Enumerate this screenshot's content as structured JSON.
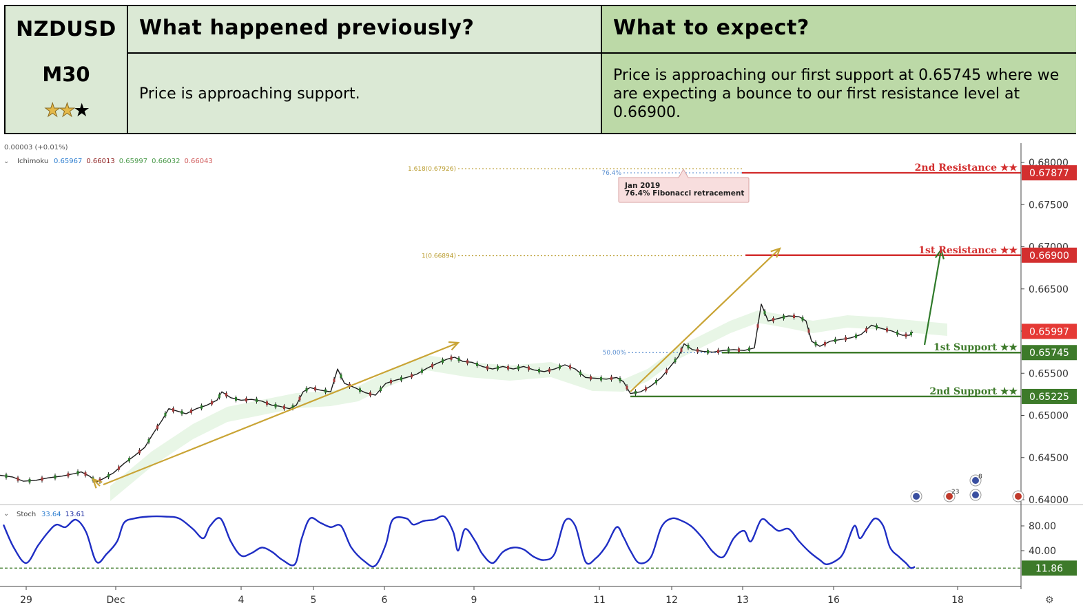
{
  "header": {
    "symbol": "NZDUSD",
    "timeframe": "M30",
    "stars_filled": 2,
    "stars_total": 3,
    "prev_title": "What happened previously?",
    "prev_text": "Price is approaching support.",
    "expect_title": "What to expect?",
    "expect_text": "Price is approaching our first support at 0.65745 where we are expecting a bounce to our first resistance level at 0.66900."
  },
  "chart_data": {
    "type": "line",
    "instrument": "NZDUSD",
    "timeframe": "M30",
    "top_readout": "0.00003 (+0.01%)",
    "indicator_label": "Ichimoku",
    "indicator_values": [
      "0.65967",
      "0.66013",
      "0.65997",
      "0.66032",
      "0.66043"
    ],
    "indicator_colors": [
      "#2f7fd0",
      "#8b1a1a",
      "#4a9a4a",
      "#4a9a4a",
      "#d05a5a"
    ],
    "price_axis": {
      "ylim": [
        0.64,
        0.68
      ],
      "ticks": [
        "0.64000",
        "0.64500",
        "0.65000",
        "0.65500",
        "0.66000",
        "0.66500",
        "0.67000",
        "0.67500",
        "0.68000"
      ]
    },
    "x_axis": {
      "ticks": [
        "29",
        "Dec",
        "4",
        "5",
        "6",
        "9",
        "11",
        "12",
        "13",
        "16",
        "18"
      ]
    },
    "current_price": "0.65997",
    "levels": [
      {
        "name": "2nd Resistance ★★",
        "value": 0.67877,
        "label": "0.67877",
        "color": "#d32f2f"
      },
      {
        "name": "1st Resistance ★★",
        "value": 0.669,
        "label": "0.66900",
        "color": "#d32f2f"
      },
      {
        "name": "1st Support ★★",
        "value": 0.65745,
        "label": "0.65745",
        "color": "#3d7a2a"
      },
      {
        "name": "2nd Support ★★",
        "value": 0.65225,
        "label": "0.65225",
        "color": "#3d7a2a"
      }
    ],
    "fib_levels": [
      {
        "label": "1.618(0.67926)",
        "value": 0.67926,
        "color": "#b89a2a"
      },
      {
        "label": "76.4%",
        "value": 0.67877,
        "color": "#5b8fd0"
      },
      {
        "label": "1(0.66894)",
        "value": 0.66894,
        "color": "#b89a2a"
      },
      {
        "label": "50.00%",
        "value": 0.65745,
        "color": "#5b8fd0"
      }
    ],
    "annotation": {
      "line1": "Jan 2019",
      "line2": "76.4% Fibonacci retracement"
    },
    "price_series": [
      [
        0,
        0.6429
      ],
      [
        18,
        0.6427
      ],
      [
        34,
        0.6422
      ],
      [
        52,
        0.6423
      ],
      [
        70,
        0.6426
      ],
      [
        90,
        0.6428
      ],
      [
        108,
        0.6431
      ],
      [
        118,
        0.6433
      ],
      [
        130,
        0.6428
      ],
      [
        140,
        0.6421
      ],
      [
        150,
        0.6425
      ],
      [
        165,
        0.6432
      ],
      [
        180,
        0.6443
      ],
      [
        195,
        0.6452
      ],
      [
        210,
        0.6462
      ],
      [
        222,
        0.6478
      ],
      [
        235,
        0.6494
      ],
      [
        245,
        0.6508
      ],
      [
        258,
        0.6505
      ],
      [
        270,
        0.6502
      ],
      [
        285,
        0.6508
      ],
      [
        300,
        0.6512
      ],
      [
        315,
        0.6518
      ],
      [
        322,
        0.6528
      ],
      [
        335,
        0.6521
      ],
      [
        350,
        0.6518
      ],
      [
        365,
        0.6519
      ],
      [
        380,
        0.6517
      ],
      [
        395,
        0.6512
      ],
      [
        405,
        0.6511
      ],
      [
        420,
        0.6508
      ],
      [
        430,
        0.6512
      ],
      [
        440,
        0.6528
      ],
      [
        450,
        0.6533
      ],
      [
        465,
        0.653
      ],
      [
        480,
        0.6528
      ],
      [
        490,
        0.6555
      ],
      [
        500,
        0.6538
      ],
      [
        515,
        0.6533
      ],
      [
        530,
        0.6527
      ],
      [
        545,
        0.6524
      ],
      [
        560,
        0.6538
      ],
      [
        575,
        0.6542
      ],
      [
        590,
        0.6545
      ],
      [
        605,
        0.6549
      ],
      [
        620,
        0.6556
      ],
      [
        635,
        0.6562
      ],
      [
        650,
        0.6567
      ],
      [
        660,
        0.6569
      ],
      [
        672,
        0.6564
      ],
      [
        685,
        0.6563
      ],
      [
        700,
        0.6558
      ],
      [
        715,
        0.6555
      ],
      [
        730,
        0.6558
      ],
      [
        745,
        0.6555
      ],
      [
        760,
        0.6558
      ],
      [
        775,
        0.6554
      ],
      [
        790,
        0.6552
      ],
      [
        805,
        0.6555
      ],
      [
        820,
        0.656
      ],
      [
        835,
        0.6555
      ],
      [
        850,
        0.6545
      ],
      [
        865,
        0.6544
      ],
      [
        880,
        0.6543
      ],
      [
        895,
        0.6545
      ],
      [
        905,
        0.654
      ],
      [
        915,
        0.6526
      ],
      [
        930,
        0.6528
      ],
      [
        945,
        0.6535
      ],
      [
        960,
        0.6545
      ],
      [
        975,
        0.656
      ],
      [
        985,
        0.657
      ],
      [
        993,
        0.6585
      ],
      [
        1005,
        0.6578
      ],
      [
        1020,
        0.6576
      ],
      [
        1035,
        0.6575
      ],
      [
        1050,
        0.6577
      ],
      [
        1065,
        0.6578
      ],
      [
        1080,
        0.6577
      ],
      [
        1095,
        0.658
      ],
      [
        1105,
        0.6632
      ],
      [
        1115,
        0.6612
      ],
      [
        1130,
        0.6615
      ],
      [
        1145,
        0.6618
      ],
      [
        1160,
        0.6617
      ],
      [
        1170,
        0.6612
      ],
      [
        1178,
        0.6588
      ],
      [
        1190,
        0.6582
      ],
      [
        1205,
        0.6588
      ],
      [
        1220,
        0.659
      ],
      [
        1235,
        0.6592
      ],
      [
        1250,
        0.6596
      ],
      [
        1265,
        0.6607
      ],
      [
        1280,
        0.6603
      ],
      [
        1295,
        0.66
      ],
      [
        1310,
        0.6595
      ],
      [
        1320,
        0.6595
      ],
      [
        1325,
        0.6599
      ]
    ],
    "stochastic": {
      "label": "Stoch",
      "values": [
        "33.64",
        "13.61"
      ],
      "value_colors": [
        "#2f7fd0",
        "#1a2aa0"
      ],
      "ticks": [
        "40.00",
        "80.00"
      ],
      "current": "11.86",
      "series": [
        [
          5,
          82
        ],
        [
          20,
          45
        ],
        [
          38,
          20
        ],
        [
          55,
          48
        ],
        [
          70,
          70
        ],
        [
          82,
          82
        ],
        [
          95,
          78
        ],
        [
          110,
          90
        ],
        [
          125,
          70
        ],
        [
          140,
          22
        ],
        [
          155,
          35
        ],
        [
          170,
          55
        ],
        [
          180,
          85
        ],
        [
          195,
          92
        ],
        [
          215,
          95
        ],
        [
          240,
          95
        ],
        [
          260,
          92
        ],
        [
          280,
          75
        ],
        [
          295,
          60
        ],
        [
          305,
          80
        ],
        [
          320,
          92
        ],
        [
          335,
          55
        ],
        [
          350,
          32
        ],
        [
          365,
          36
        ],
        [
          380,
          45
        ],
        [
          395,
          38
        ],
        [
          410,
          25
        ],
        [
          428,
          18
        ],
        [
          438,
          60
        ],
        [
          450,
          92
        ],
        [
          465,
          85
        ],
        [
          480,
          78
        ],
        [
          495,
          80
        ],
        [
          510,
          45
        ],
        [
          530,
          22
        ],
        [
          545,
          16
        ],
        [
          560,
          50
        ],
        [
          570,
          90
        ],
        [
          590,
          92
        ],
        [
          600,
          82
        ],
        [
          615,
          88
        ],
        [
          630,
          90
        ],
        [
          645,
          95
        ],
        [
          658,
          70
        ],
        [
          665,
          40
        ],
        [
          675,
          75
        ],
        [
          690,
          55
        ],
        [
          700,
          35
        ],
        [
          715,
          20
        ],
        [
          730,
          38
        ],
        [
          745,
          45
        ],
        [
          760,
          42
        ],
        [
          775,
          30
        ],
        [
          790,
          25
        ],
        [
          805,
          35
        ],
        [
          820,
          88
        ],
        [
          835,
          80
        ],
        [
          850,
          22
        ],
        [
          865,
          28
        ],
        [
          880,
          48
        ],
        [
          895,
          78
        ],
        [
          905,
          62
        ],
        [
          915,
          40
        ],
        [
          928,
          20
        ],
        [
          945,
          30
        ],
        [
          960,
          78
        ],
        [
          975,
          92
        ],
        [
          990,
          88
        ],
        [
          1005,
          78
        ],
        [
          1020,
          60
        ],
        [
          1035,
          38
        ],
        [
          1050,
          30
        ],
        [
          1065,
          60
        ],
        [
          1080,
          72
        ],
        [
          1090,
          55
        ],
        [
          1105,
          90
        ],
        [
          1118,
          82
        ],
        [
          1130,
          72
        ],
        [
          1145,
          75
        ],
        [
          1160,
          55
        ],
        [
          1175,
          38
        ],
        [
          1190,
          25
        ],
        [
          1200,
          18
        ],
        [
          1215,
          25
        ],
        [
          1225,
          38
        ],
        [
          1240,
          80
        ],
        [
          1248,
          60
        ],
        [
          1258,
          75
        ],
        [
          1270,
          92
        ],
        [
          1282,
          80
        ],
        [
          1292,
          45
        ],
        [
          1305,
          30
        ],
        [
          1315,
          20
        ],
        [
          1322,
          12
        ],
        [
          1328,
          14
        ]
      ]
    }
  }
}
